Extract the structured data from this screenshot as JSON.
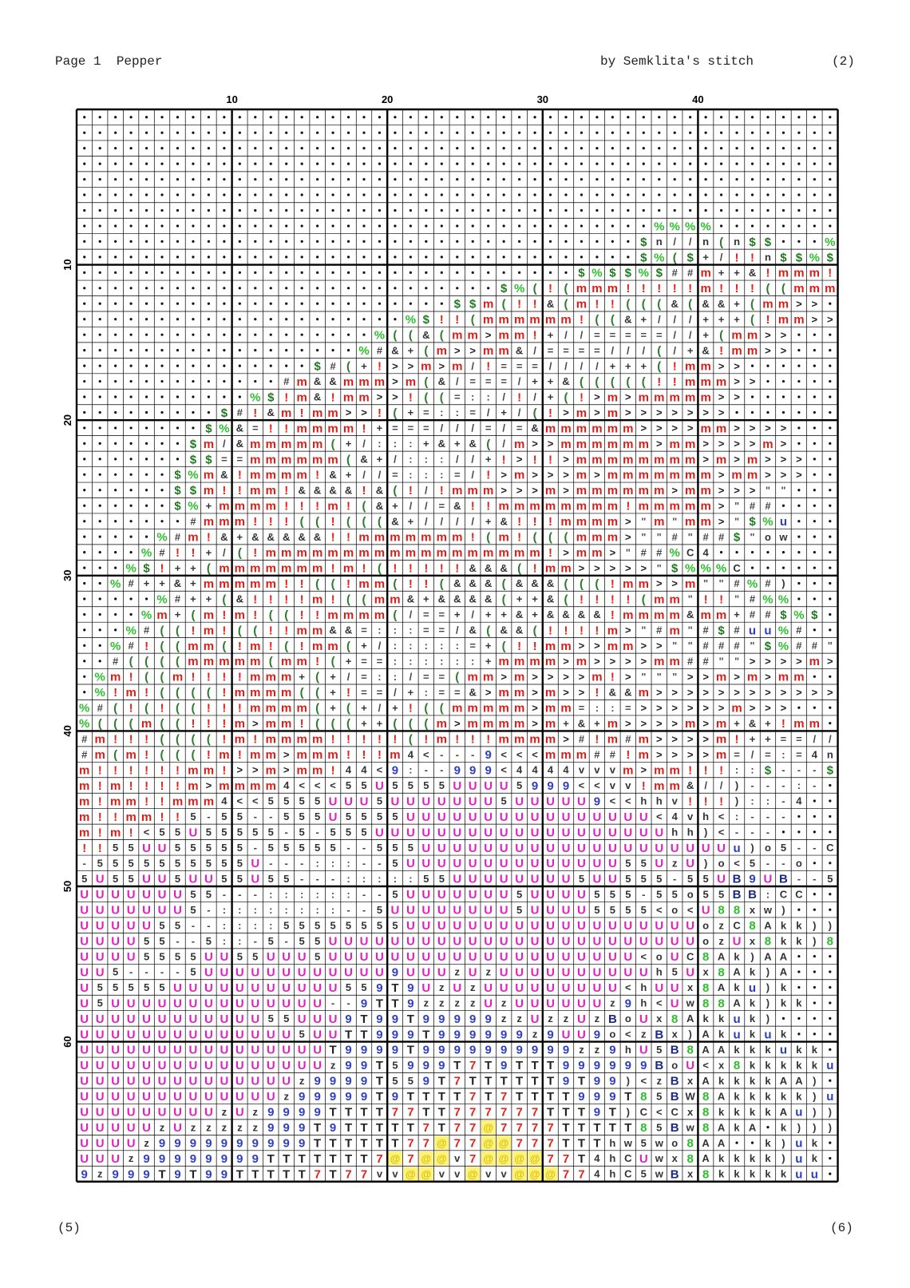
{
  "header": {
    "left_text": "Page 1  Pepper",
    "right_text": "by Semklita's stitch",
    "right_number": "(2)"
  },
  "footer": {
    "left_text": "(5)",
    "right_text": "(6)"
  },
  "pattern": {
    "column_labels": [
      "10",
      "20",
      "30",
      "40"
    ],
    "row_labels": [
      "10",
      "20",
      "30",
      "40",
      "50",
      "60"
    ],
    "columns": 49,
    "rows": 69,
    "symbol_colors": {
      "•": "#111111",
      "%": "#2bbf2b",
      "$": "#1f7a1f",
      "!": "#e0241a",
      "m": "#d91e18",
      "(": "#2f7a2f",
      "&": "#333333",
      "+": "#333333",
      "/": "#444444",
      ">": "#222222",
      "=": "#444444",
      ":": "#444444",
      "#": "#444444",
      "\"": "#555555",
      "-": "#444444",
      "<": "#333333",
      "4": "#333333",
      "5": "#333333",
      "U": "#e020c0",
      "u": "#2a3fbf",
      "9": "#3040c0",
      "T": "#222222",
      "z": "#333333",
      "h": "#333333",
      "o": "#333333",
      "C": "#333333",
      "c": "#333333",
      "k": "#333333",
      "A": "#333333",
      "a": "#333333",
      "x": "#333333",
      "w": "#333333",
      ")": "#333333",
      "B": "#1a2a8a",
      "8": "#2bbf2b",
      "7": "#e0241a",
      "@": "#f0e030",
      "v": "#333333",
      "n": "#333333",
      "e": "#333333",
      "8g": "#2bbf2b"
    },
    "grid": [
      "•••••••••••••••••••••••••••••••••••••••••••••••••",
      "•••••••••••••••••••••••••••••••••••••••••••••••••",
      "•••••••••••••••••••••••••••••••••••••••••••••••••",
      "•••••••••••••••••••••••••••••••••••••••••••••••••",
      "•••••••••••••••••••••••••••••••••••••••••••••••••",
      "•••••••••••••••••••••••••••••••••••••••••••••••••",
      "•••••••••••••••••••••••••••••••••••••••••••••••••",
      "•••••••••••••••••••••••••••••••••••••%%%%••••••••",
      "••••••••••••••••••••••••••••••••••••$n//n(n$$•••%!",
      "••••••••••••••••••••••••••••••••••••$%($+/!!n$$%$##",
      "••••••••••••••••••••••••••••••••$%$$%$##m++&!mmm!m!(",
      "•••••••••••••••••••••••••••$%(!(mmm!!!!!m!!!((mmmm",
      "••••••••••••••••••••••••$$m(!!&(m!!(((&(&&+(mm>>",
      "•••••••••••••••••••••%$!!(mmmmmm!((&+///+++(!mm>>",
      "•••••••••••••••••••%((&(mm>mm!+//=====//+(mm>>",
      "••••••••••••••••••%#&+(m>>mm&/====///(/+&!mm>>",
      "•••••••••••••••$#(+!>>m>m/!===////+++(!mm>>",
      "•••••••••••••#m&&mmm>m(&/===/++&(((((!!mmm>>",
      "•••••••••••%$!m&!mm>>!((=::/!/+(!>m>mmmmm>>",
      "•••••••••$#!&m!mm>>!(+=::=/+/(!>m>m>>>>>>>",
      "••••••••$%&=!!mmmm!+===///=/=&mmmmmm>>>>mm>>>>",
      "•••••••$m/&mmmmm(+/:::+&+&(/m>>mmmmmm>mm>>>>m>",
      "•••••••$$==mmmmmm(&+/::://+!>!!>mmmmmmmm>m>m>>>",
      "••••••$%m&!mmmm!&+//=:::=/!>m>>>m>mmmmmmm>mm>>>",
      "••••••$$m!!mm!&&&&!&(!/!mmm>>>m>mmmmmm>mm>>>\"\"",
      "••••••$%+mmmm!!!m!(&+//=&!!mmmmmmmm!mmmmm>\"##",
      "•••••••#mmm!!!((!(((&+////+&!!!mmmm>\"m\"mm>\"$%u",
      "•••••%#m!&+&&&&&!!mmmmmmm!(m!(((mmm>\"\"#\"##$\"ow",
      "••••%#!!+/(!mmmmmmmmmmmmmmmmmm!>mm>\"##%C4",
      "•••%$!++(mmmmmmm!m!(!!!!!&&&(!mm>>>>>\"$%%%C",
      "••%#++&+mmmmm!!((!mm(!!(&&&(&&&(((!mm>>m\"\"#%#)",
      "•••••%#++(&!!!!m!((mm&+&&&&(++&(!!!!(mm\"!!\"#%%",
      "••••%m+(m!m!((!!mmmm(/==+/++&+&&&&!mmmm&mm+##$%$",
      "•••%#((!m!((!!mm&&=:::==/&(&&(!!!!m>\"#m\"#$#uu%#",
      "••%#!((mm(!m!(!mm(+/:::::=+(!!mm>>mm>>\"\"###\"$%##\"\"",
      "••#((((mmmmm(mm!(+==::::::+mmmm>m>>>>mm##\"\">>>>m>",
      "•%m!((m!!!!mmm+(+/=::/==(mm>m>>>>m!>\"\"\">>m>m>mm",
      "•%!m!((((!mmmm((+!==/+:==&>mm>m>>!&&m>>>>>>>>>>>>",
      "%#(!(!((!!!mmmm(+(+/+!((mmmmm>mm=::=>>>>>>m>>>",
      "%(((m((!!!m>mm!(((++(((m>mmmm>m+&+m>>>>m>m+&+!mm",
      "#m!!!((((!m!mmmm!!!!!(!m!!!mmmm>#!m#m>>>>m!++==//!>",
      "#m(m!(((!m!mm>mmm!!!m4<---9<<<mmm##!m>>>>m=/=:=4nn!",
      "m!!!!!!mm!>>m>mm!44<9:--999<4444vvvm>mm!!!::$---$",
      "m!m!!!!m>mmmm4<<<55U5555UUUU5999<<vv!mm&//)---:-",
      "m!mm!!mmm4<<5555UUU5UUUUUUU5UUUUU9<<hhv!!!)::-4",
      "m!!mm!!5-55--555U5555UUUUUUUUUUUUUUUU<4vh<:---",
      "m!m!<55U55555-5-555UUUUUUUUUUUUUUUUUUUhh)<---",
      "!!55UU55555-55555--555UUUUUUUUUUUUUUUUUUUUu)o5--CC",
      "-5555555555U---:::--5UUUUUUUUUUUUUU55UzU)o<5--o",
      "5U55UU5UU55U55---:::::55UUUUUUUU5UU555-55UB9UB--5",
      "UUUUUUU55---::::::--5UUUUUUU5UUUU555-55o55BB:CC",
      "UUUUUUU5-::::::::--5UUUUUUUU5UUUU5555<o<U88xw)",
      "UUUUU55--::::55555555UUUUUUUUUUUUUUUUUUUozC8Akk))",
      "UUUU55--5::-5-55UUUUUUUUUUUUUUUUUUUUUUUUozUx8kk)8",
      "UUUU5555UU55UUU5UUUUUUUUUUUUUUUUUUUU<oUC8Ak)AA",
      "UU5----5UUUUUUUUUUUU9UUUzUzUUUUUUUUUUh5Ux8Ak)A",
      "U55555UUUUUUUUUUU559T9UzUzUUUUUUUUU<hUUx8Aku)k",
      "U5UUUUUUUUUUUUUU--9TT9zzzzUzUUUUUUz9h<Uw88Ak)kk",
      "UUUUUUUUUUUU55UUU9T99T99999zzUzzUzBoUx8Akkuk)",
      "UUUUUUUUUUUUUU5UUTT999T999999z9UU9o<zBx)Akukuk",
      "UUUUUUUUUUUUUUUUT9999T9999999999zz9hU5B8AAkkkukk",
      "UUUUUUUUUUUUUUUUz99T5999T7T9TTT999999BoU<x8kkkkkuu",
      "UUUUUUUUUUUUUUz9999T559T7TTTTTT9T99)<zBxAkkkkAA)",
      "UUUUUUUUUUUUUz99999T9TTTT7T7TTTT999T85BW8Akkkkk)u",
      "UUUUUUUUUzUz9999TTTT77TT777777TTT9T)C<Cx8kkkkAu))",
      "UUUUUzUzzzzz999T9TTTTT7T77@7777TTTTT85Bw8AkA•k)))",
      "UUUUz9999999999TTTTTT77@77@@777TTThw5wo8AA••k)uk",
      "UUUz99999999TTTTTTT7@7@@v7@@@@77T4hCUwx8Akkkk)uk",
      "9z999T9T99TTTTT7T77vv@@vv@vv@@@774hC5wBx8kkkkkuu•)u"
    ]
  }
}
